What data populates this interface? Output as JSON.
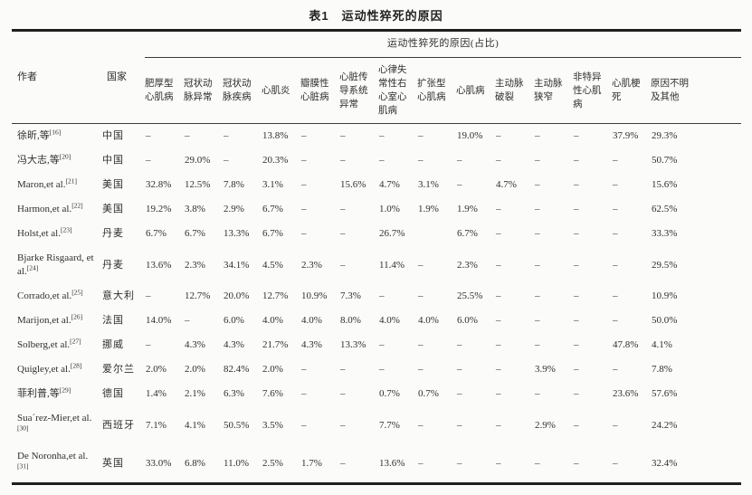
{
  "table": {
    "title": "表1　运动性猝死的原因",
    "span_header": "运动性猝死的原因(占比)",
    "col_author": "作者",
    "col_country": "国家",
    "cause_columns": [
      "肥厚型心肌病",
      "冠状动脉异常",
      "冠状动脉疾病",
      "心肌炎",
      "瓣膜性心脏病",
      "心脏传导系统异常",
      "心律失常性右心室心肌病",
      "扩张型心肌病",
      "心肌病",
      "主动脉破裂",
      "主动脉狭窄",
      "非特异性心肌病",
      "心肌梗死",
      "原因不明及其他"
    ],
    "rows": [
      {
        "author": "徐昕,等",
        "ref": "[16]",
        "country": "中国",
        "values": [
          "–",
          "–",
          "–",
          "13.8%",
          "–",
          "–",
          "–",
          "–",
          "19.0%",
          "–",
          "–",
          "–",
          "37.9%",
          "29.3%"
        ]
      },
      {
        "author": "冯大志,等",
        "ref": "[20]",
        "country": "中国",
        "values": [
          "–",
          "29.0%",
          "–",
          "20.3%",
          "–",
          "–",
          "–",
          "–",
          "–",
          "–",
          "–",
          "–",
          "–",
          "50.7%"
        ]
      },
      {
        "author": "Maron,et al.",
        "ref": "[21]",
        "country": "美国",
        "values": [
          "32.8%",
          "12.5%",
          "7.8%",
          "3.1%",
          "–",
          "15.6%",
          "4.7%",
          "3.1%",
          "–",
          "4.7%",
          "–",
          "–",
          "–",
          "15.6%"
        ]
      },
      {
        "author": "Harmon,et al.",
        "ref": "[22]",
        "country": "美国",
        "values": [
          "19.2%",
          "3.8%",
          "2.9%",
          "6.7%",
          "–",
          "–",
          "1.0%",
          "1.9%",
          "1.9%",
          "–",
          "–",
          "–",
          "–",
          "62.5%"
        ]
      },
      {
        "author": "Holst,et al.",
        "ref": "[23]",
        "country": "丹麦",
        "values": [
          "6.7%",
          "6.7%",
          "13.3%",
          "6.7%",
          "–",
          "–",
          "26.7%",
          "",
          "6.7%",
          "–",
          "–",
          "–",
          "–",
          "33.3%"
        ]
      },
      {
        "author": "Bjarke Risgaard, et al.",
        "ref": "[24]",
        "country": "丹麦",
        "values": [
          "13.6%",
          "2.3%",
          "34.1%",
          "4.5%",
          "2.3%",
          "–",
          "11.4%",
          "–",
          "2.3%",
          "–",
          "–",
          "–",
          "–",
          "29.5%"
        ]
      },
      {
        "author": "Corrado,et al.",
        "ref": "[25]",
        "country": "意大利",
        "values": [
          "–",
          "12.7%",
          "20.0%",
          "12.7%",
          "10.9%",
          "7.3%",
          "–",
          "–",
          "25.5%",
          "–",
          "–",
          "–",
          "–",
          "10.9%"
        ]
      },
      {
        "author": "Marijon,et al.",
        "ref": "[26]",
        "country": "法国",
        "values": [
          "14.0%",
          "–",
          "6.0%",
          "4.0%",
          "4.0%",
          "8.0%",
          "4.0%",
          "4.0%",
          "6.0%",
          "–",
          "–",
          "–",
          "–",
          "50.0%"
        ]
      },
      {
        "author": "Solberg,et al.",
        "ref": "[27]",
        "country": "挪威",
        "values": [
          "–",
          "4.3%",
          "4.3%",
          "21.7%",
          "4.3%",
          "13.3%",
          "–",
          "–",
          "–",
          "–",
          "–",
          "–",
          "47.8%",
          "4.1%"
        ]
      },
      {
        "author": "Quigley,et al.",
        "ref": "[28]",
        "country": "爱尔兰",
        "values": [
          "2.0%",
          "2.0%",
          "82.4%",
          "2.0%",
          "–",
          "–",
          "–",
          "–",
          "–",
          "–",
          "3.9%",
          "–",
          "–",
          "7.8%"
        ]
      },
      {
        "author": "菲利普,等",
        "ref": "[29]",
        "country": "德国",
        "values": [
          "1.4%",
          "2.1%",
          "6.3%",
          "7.6%",
          "–",
          "–",
          "0.7%",
          "0.7%",
          "–",
          "–",
          "–",
          "–",
          "23.6%",
          "57.6%"
        ]
      },
      {
        "author": "Sua´rez-Mier,et al.",
        "ref": "[30]",
        "country": "西班牙",
        "values": [
          "7.1%",
          "4.1%",
          "50.5%",
          "3.5%",
          "–",
          "–",
          "7.7%",
          "–",
          "–",
          "–",
          "2.9%",
          "–",
          "–",
          "24.2%"
        ]
      },
      {
        "author": "De Noronha,et al. ",
        "ref": "[31]",
        "country": "英国",
        "values": [
          "33.0%",
          "6.8%",
          "11.0%",
          "2.5%",
          "1.7%",
          "–",
          "13.6%",
          "–",
          "–",
          "–",
          "–",
          "–",
          "–",
          "32.4%"
        ]
      }
    ]
  }
}
